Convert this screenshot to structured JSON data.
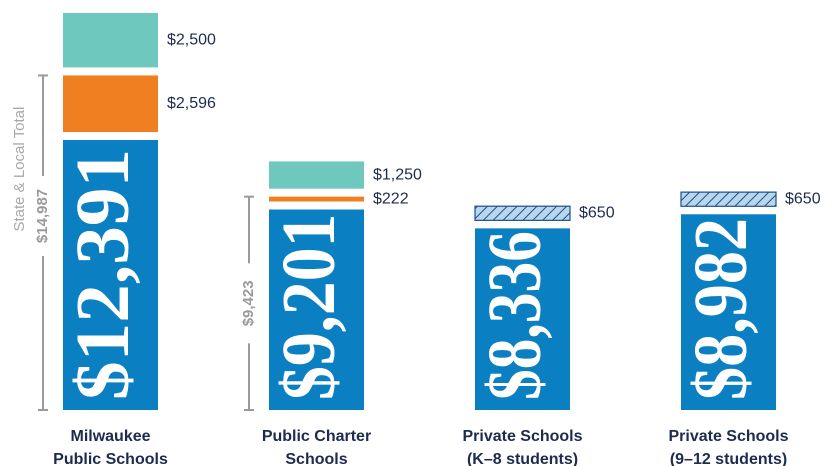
{
  "chart_data": {
    "type": "stacked_bar",
    "categories": [
      [
        "Milwaukee",
        "Public Schools"
      ],
      [
        "Public Charter",
        "Schools"
      ],
      [
        "Private Schools",
        "(K–8 students)"
      ],
      [
        "Private Schools",
        "(9–12 students)"
      ]
    ],
    "series": [
      {
        "color": "#0a7fc1",
        "label_position": "inside",
        "values": [
          12391,
          9201,
          8336,
          8982
        ],
        "value_labels": [
          "$12,391",
          "$9,201",
          "$8,336",
          "$8,982"
        ]
      },
      {
        "color": "#f07f22",
        "label_position": "right",
        "values": [
          2596,
          222,
          null,
          null
        ],
        "value_labels": [
          "$2,596",
          "$222",
          null,
          null
        ]
      },
      {
        "color": "#6fc8bd",
        "label_position": "right",
        "values": [
          2500,
          1250,
          null,
          null
        ],
        "value_labels": [
          "$2,500",
          "$1,250",
          null,
          null
        ]
      },
      {
        "color": "#b9d6ec",
        "pattern": "hatch",
        "label_position": "right",
        "values": [
          null,
          null,
          650,
          650
        ],
        "value_labels": [
          null,
          null,
          "$650",
          "$650"
        ]
      }
    ],
    "brackets": [
      {
        "category": 0,
        "label": "State & Local Total",
        "value": 14987,
        "value_label": "$14,987"
      },
      {
        "category": 1,
        "value": 9423,
        "value_label": "$9,423"
      }
    ]
  }
}
